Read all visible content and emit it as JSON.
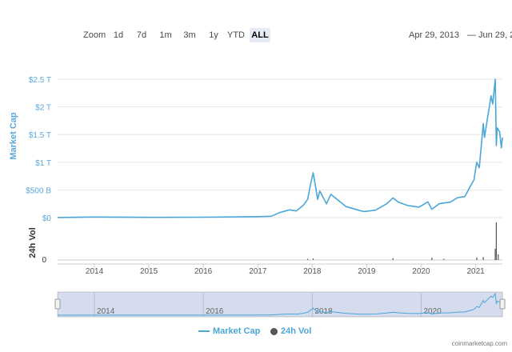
{
  "toolbar": {
    "zoom_label": "Zoom",
    "buttons": [
      "1d",
      "7d",
      "1m",
      "3m",
      "1y",
      "YTD",
      "ALL"
    ],
    "active_button": "ALL",
    "range_from": "Apr 29, 2013",
    "range_sep": "—",
    "range_to": "Jun 29, 2"
  },
  "watermark": "coinmarketcap.com",
  "colors": {
    "line": "#4aa7d8",
    "navigator_fill": "#ccd6eb",
    "volume": "#555555",
    "axis_label": "#5ba7d8"
  },
  "chart_data": {
    "type": "line",
    "ylabel": "Market Cap",
    "ylabel2": "24h Vol",
    "ylim": [
      0,
      2500000000000
    ],
    "yticks": [
      0,
      500000000000,
      1000000000000,
      1500000000000,
      2000000000000,
      2500000000000
    ],
    "ytick_labels": [
      "$0",
      "$500 B",
      "$1 T",
      "$1.5 T",
      "$2 T",
      "$2.5 T"
    ],
    "vol_tick_labels": [
      "0"
    ],
    "xtick_labels": [
      "2014",
      "2015",
      "2016",
      "2017",
      "2018",
      "2019",
      "2020",
      "2021"
    ],
    "navigator_labels": [
      "2014",
      "2016",
      "2018",
      "2020"
    ],
    "x_range": [
      "2013-04-29",
      "2021-06-29"
    ],
    "grid": true,
    "legend_position": "bottom",
    "series": [
      {
        "name": "Market Cap",
        "x": [
          "2013-04-29",
          "2013-11-30",
          "2014-06-01",
          "2015-01-15",
          "2016-01-01",
          "2016-12-31",
          "2017-04-01",
          "2017-05-25",
          "2017-08-01",
          "2017-09-15",
          "2017-11-01",
          "2017-12-01",
          "2017-12-20",
          "2018-01-07",
          "2018-02-06",
          "2018-02-20",
          "2018-04-06",
          "2018-05-05",
          "2018-08-15",
          "2018-11-25",
          "2018-12-15",
          "2019-03-01",
          "2019-05-15",
          "2019-06-26",
          "2019-08-01",
          "2019-10-01",
          "2019-12-18",
          "2020-02-15",
          "2020-03-13",
          "2020-05-01",
          "2020-07-15",
          "2020-09-01",
          "2020-10-20",
          "2020-11-25",
          "2020-12-20",
          "2021-01-08",
          "2021-01-25",
          "2021-02-21",
          "2021-03-01",
          "2021-04-14",
          "2021-04-25",
          "2021-05-12",
          "2021-05-19",
          "2021-05-25",
          "2021-06-10",
          "2021-06-22",
          "2021-06-29"
        ],
        "y": [
          1500000000,
          10000000000,
          8000000000,
          5000000000,
          7000000000,
          17000000000,
          25000000000,
          90000000000,
          140000000000,
          120000000000,
          220000000000,
          330000000000,
          600000000000,
          810000000000,
          330000000000,
          480000000000,
          250000000000,
          420000000000,
          200000000000,
          120000000000,
          110000000000,
          135000000000,
          250000000000,
          355000000000,
          280000000000,
          220000000000,
          190000000000,
          285000000000,
          150000000000,
          250000000000,
          280000000000,
          360000000000,
          380000000000,
          560000000000,
          680000000000,
          1000000000000,
          900000000000,
          1700000000000,
          1450000000000,
          2200000000000,
          2050000000000,
          2500000000000,
          1300000000000,
          1620000000000,
          1550000000000,
          1260000000000,
          1450000000000
        ]
      },
      {
        "name": "24h Vol",
        "x": [
          "2017-12-01",
          "2018-01-07",
          "2019-06-26",
          "2020-03-13",
          "2020-06-01",
          "2021-01-08",
          "2021-02-21",
          "2021-05-12",
          "2021-05-19",
          "2021-06-01"
        ],
        "y": [
          0.03,
          0.04,
          0.05,
          0.06,
          0.03,
          0.07,
          0.08,
          0.3,
          1.0,
          0.15
        ]
      }
    ]
  }
}
